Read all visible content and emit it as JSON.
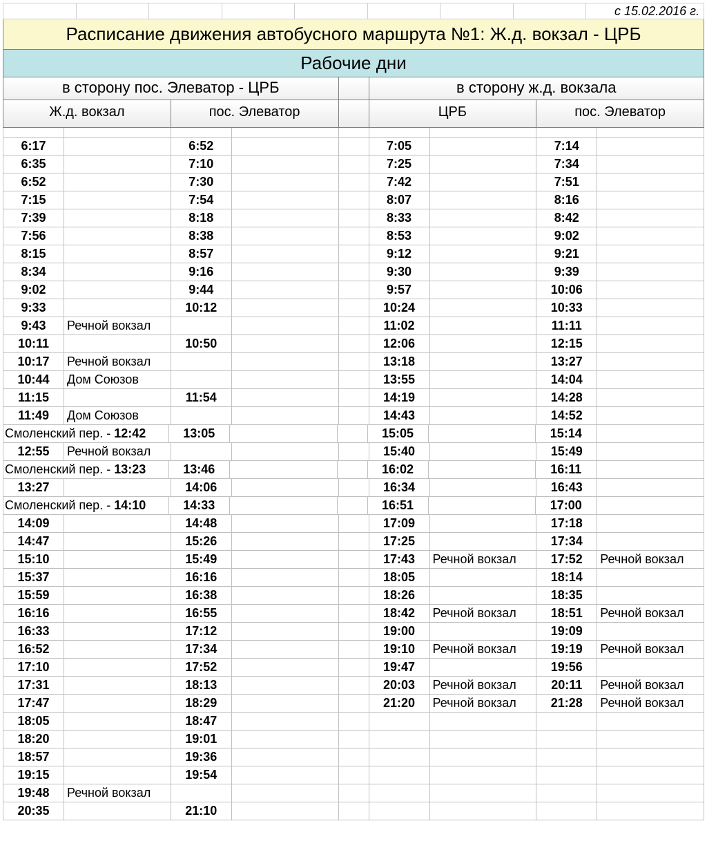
{
  "effective_date": "с 15.02.2016 г.",
  "title": "Расписание движения автобусного маршрута №1: Ж.д. вокзал - ЦРБ",
  "subtitle": "Рабочие дни",
  "direction_left": "в сторону пос. Элеватор - ЦРБ",
  "direction_right": "в сторону ж.д. вокзала",
  "stop_l1": "Ж.д. вокзал",
  "stop_l2": "пос. Элеватор",
  "stop_r1": "ЦРБ",
  "stop_r2": "пос. Элеватор",
  "rows": [
    {
      "l1": "6:17",
      "l1n": "",
      "l2": "6:52",
      "l2n": "",
      "r1": "7:05",
      "r1n": "",
      "r2": "7:14",
      "r2n": ""
    },
    {
      "l1": "6:35",
      "l1n": "",
      "l2": "7:10",
      "l2n": "",
      "r1": "7:25",
      "r1n": "",
      "r2": "7:34",
      "r2n": ""
    },
    {
      "l1": "6:52",
      "l1n": "",
      "l2": "7:30",
      "l2n": "",
      "r1": "7:42",
      "r1n": "",
      "r2": "7:51",
      "r2n": ""
    },
    {
      "l1": "7:15",
      "l1n": "",
      "l2": "7:54",
      "l2n": "",
      "r1": "8:07",
      "r1n": "",
      "r2": "8:16",
      "r2n": ""
    },
    {
      "l1": "7:39",
      "l1n": "",
      "l2": "8:18",
      "l2n": "",
      "r1": "8:33",
      "r1n": "",
      "r2": "8:42",
      "r2n": ""
    },
    {
      "l1": "7:56",
      "l1n": "",
      "l2": "8:38",
      "l2n": "",
      "r1": "8:53",
      "r1n": "",
      "r2": "9:02",
      "r2n": ""
    },
    {
      "l1": "8:15",
      "l1n": "",
      "l2": "8:57",
      "l2n": "",
      "r1": "9:12",
      "r1n": "",
      "r2": "9:21",
      "r2n": ""
    },
    {
      "l1": "8:34",
      "l1n": "",
      "l2": "9:16",
      "l2n": "",
      "r1": "9:30",
      "r1n": "",
      "r2": "9:39",
      "r2n": ""
    },
    {
      "l1": "9:02",
      "l1n": "",
      "l2": "9:44",
      "l2n": "",
      "r1": "9:57",
      "r1n": "",
      "r2": "10:06",
      "r2n": ""
    },
    {
      "l1": "9:33",
      "l1n": "",
      "l2": "10:12",
      "l2n": "",
      "r1": "10:24",
      "r1n": "",
      "r2": "10:33",
      "r2n": ""
    },
    {
      "l1": "9:43",
      "l1n": "Речной вокзал",
      "l2": "",
      "l2n": "",
      "r1": "11:02",
      "r1n": "",
      "r2": "11:11",
      "r2n": ""
    },
    {
      "l1": "10:11",
      "l1n": "",
      "l2": "10:50",
      "l2n": "",
      "r1": "12:06",
      "r1n": "",
      "r2": "12:15",
      "r2n": ""
    },
    {
      "l1": "10:17",
      "l1n": "Речной вокзал",
      "l2": "",
      "l2n": "",
      "r1": "13:18",
      "r1n": "",
      "r2": "13:27",
      "r2n": ""
    },
    {
      "l1": "10:44",
      "l1n": "Дом Союзов",
      "l2": "",
      "l2n": "",
      "r1": "13:55",
      "r1n": "",
      "r2": "14:04",
      "r2n": ""
    },
    {
      "l1": "11:15",
      "l1n": "",
      "l2": "11:54",
      "l2n": "",
      "r1": "14:19",
      "r1n": "",
      "r2": "14:28",
      "r2n": ""
    },
    {
      "l1": "11:49",
      "l1n": "Дом Союзов",
      "l2": "",
      "l2n": "",
      "r1": "14:43",
      "r1n": "",
      "r2": "14:52",
      "r2n": ""
    },
    {
      "l1m": "Смоленский пер. - ",
      "l1mt": "12:42",
      "l2": "13:05",
      "l2n": "",
      "r1": "15:05",
      "r1n": "",
      "r2": "15:14",
      "r2n": ""
    },
    {
      "l1": "12:55",
      "l1n": "Речной вокзал",
      "l2": "",
      "l2n": "",
      "r1": "15:40",
      "r1n": "",
      "r2": "15:49",
      "r2n": ""
    },
    {
      "l1m": "Смоленский пер. - ",
      "l1mt": "13:23",
      "l2": "13:46",
      "l2n": "",
      "r1": "16:02",
      "r1n": "",
      "r2": "16:11",
      "r2n": ""
    },
    {
      "l1": "13:27",
      "l1n": "",
      "l2": "14:06",
      "l2n": "",
      "r1": "16:34",
      "r1n": "",
      "r2": "16:43",
      "r2n": ""
    },
    {
      "l1m": "Смоленский пер. - ",
      "l1mt": "14:10",
      "l2": "14:33",
      "l2n": "",
      "r1": "16:51",
      "r1n": "",
      "r2": "17:00",
      "r2n": ""
    },
    {
      "l1": "14:09",
      "l1n": "",
      "l2": "14:48",
      "l2n": "",
      "r1": "17:09",
      "r1n": "",
      "r2": "17:18",
      "r2n": ""
    },
    {
      "l1": "14:47",
      "l1n": "",
      "l2": "15:26",
      "l2n": "",
      "r1": "17:25",
      "r1n": "",
      "r2": "17:34",
      "r2n": ""
    },
    {
      "l1": "15:10",
      "l1n": "",
      "l2": "15:49",
      "l2n": "",
      "r1": "17:43",
      "r1n": "Речной вокзал",
      "r2": "17:52",
      "r2n": "Речной вокзал"
    },
    {
      "l1": "15:37",
      "l1n": "",
      "l2": "16:16",
      "l2n": "",
      "r1": "18:05",
      "r1n": "",
      "r2": "18:14",
      "r2n": ""
    },
    {
      "l1": "15:59",
      "l1n": "",
      "l2": "16:38",
      "l2n": "",
      "r1": "18:26",
      "r1n": "",
      "r2": "18:35",
      "r2n": ""
    },
    {
      "l1": "16:16",
      "l1n": "",
      "l2": "16:55",
      "l2n": "",
      "r1": "18:42",
      "r1n": "Речной вокзал",
      "r2": "18:51",
      "r2n": "Речной вокзал"
    },
    {
      "l1": "16:33",
      "l1n": "",
      "l2": "17:12",
      "l2n": "",
      "r1": "19:00",
      "r1n": "",
      "r2": "19:09",
      "r2n": ""
    },
    {
      "l1": "16:52",
      "l1n": "",
      "l2": "17:34",
      "l2n": "",
      "r1": "19:10",
      "r1n": "Речной вокзал",
      "r2": "19:19",
      "r2n": "Речной вокзал"
    },
    {
      "l1": "17:10",
      "l1n": "",
      "l2": "17:52",
      "l2n": "",
      "r1": "19:47",
      "r1n": "",
      "r2": "19:56",
      "r2n": ""
    },
    {
      "l1": "17:31",
      "l1n": "",
      "l2": "18:13",
      "l2n": "",
      "r1": "20:03",
      "r1n": "Речной вокзал",
      "r2": "20:11",
      "r2n": "Речной вокзал"
    },
    {
      "l1": "17:47",
      "l1n": "",
      "l2": "18:29",
      "l2n": "",
      "r1": "21:20",
      "r1n": "Речной вокзал",
      "r2": "21:28",
      "r2n": "Речной вокзал"
    },
    {
      "l1": "18:05",
      "l1n": "",
      "l2": "18:47",
      "l2n": "",
      "r1": "",
      "r1n": "",
      "r2": "",
      "r2n": ""
    },
    {
      "l1": "18:20",
      "l1n": "",
      "l2": "19:01",
      "l2n": "",
      "r1": "",
      "r1n": "",
      "r2": "",
      "r2n": ""
    },
    {
      "l1": "18:57",
      "l1n": "",
      "l2": "19:36",
      "l2n": "",
      "r1": "",
      "r1n": "",
      "r2": "",
      "r2n": ""
    },
    {
      "l1": "19:15",
      "l1n": "",
      "l2": "19:54",
      "l2n": "",
      "r1": "",
      "r1n": "",
      "r2": "",
      "r2n": ""
    },
    {
      "l1": "19:48",
      "l1n": "Речной вокзал",
      "l2": "",
      "l2n": "",
      "r1": "",
      "r1n": "",
      "r2": "",
      "r2n": ""
    },
    {
      "l1": "20:35",
      "l1n": "",
      "l2": "21:10",
      "l2n": "",
      "r1": "",
      "r1n": "",
      "r2": "",
      "r2n": ""
    }
  ]
}
